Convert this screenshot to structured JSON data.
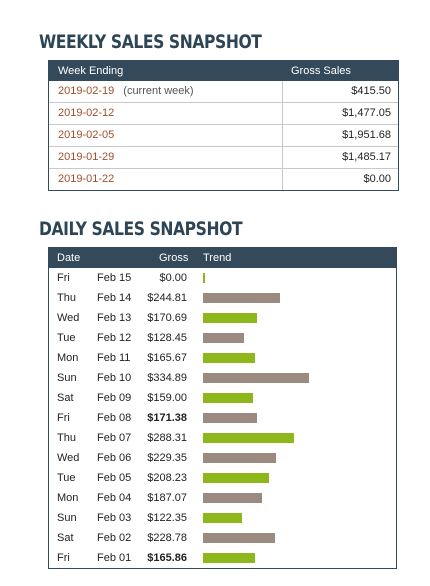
{
  "weekly": {
    "title": "WEEKLY SALES SNAPSHOT",
    "headers": {
      "week_ending": "Week Ending",
      "gross_sales": "Gross Sales"
    },
    "rows": [
      {
        "date": "2019-02-19",
        "note": "(current week)",
        "amount": "$415.50"
      },
      {
        "date": "2019-02-12",
        "note": "",
        "amount": "$1,477.05"
      },
      {
        "date": "2019-02-05",
        "note": "",
        "amount": "$1,951.68"
      },
      {
        "date": "2019-01-29",
        "note": "",
        "amount": "$1,485.17"
      },
      {
        "date": "2019-01-22",
        "note": "",
        "amount": "$0.00"
      }
    ]
  },
  "daily": {
    "title": "DAILY SALES SNAPSHOT",
    "headers": {
      "date": "Date",
      "gross": "Gross",
      "trend": "Trend"
    },
    "colors": {
      "green": "#8db71b",
      "taupe": "#9b8a7f"
    },
    "trend_max": 334.89,
    "rows": [
      {
        "dow": "Fri",
        "md": "Feb 15",
        "amount": "$0.00",
        "value": 0,
        "bold": false,
        "color": "green"
      },
      {
        "dow": "Thu",
        "md": "Feb 14",
        "amount": "$244.81",
        "value": 244.81,
        "bold": false,
        "color": "taupe"
      },
      {
        "dow": "Wed",
        "md": "Feb 13",
        "amount": "$170.69",
        "value": 170.69,
        "bold": false,
        "color": "green"
      },
      {
        "dow": "Tue",
        "md": "Feb 12",
        "amount": "$128.45",
        "value": 128.45,
        "bold": false,
        "color": "taupe"
      },
      {
        "dow": "Mon",
        "md": "Feb 11",
        "amount": "$165.67",
        "value": 165.67,
        "bold": false,
        "color": "green"
      },
      {
        "dow": "Sun",
        "md": "Feb 10",
        "amount": "$334.89",
        "value": 334.89,
        "bold": false,
        "color": "taupe"
      },
      {
        "dow": "Sat",
        "md": "Feb 09",
        "amount": "$159.00",
        "value": 159.0,
        "bold": false,
        "color": "green"
      },
      {
        "dow": "Fri",
        "md": "Feb 08",
        "amount": "$171.38",
        "value": 171.38,
        "bold": true,
        "color": "taupe"
      },
      {
        "dow": "Thu",
        "md": "Feb 07",
        "amount": "$288.31",
        "value": 288.31,
        "bold": false,
        "color": "green"
      },
      {
        "dow": "Wed",
        "md": "Feb 06",
        "amount": "$229.35",
        "value": 229.35,
        "bold": false,
        "color": "taupe"
      },
      {
        "dow": "Tue",
        "md": "Feb 05",
        "amount": "$208.23",
        "value": 208.23,
        "bold": false,
        "color": "green"
      },
      {
        "dow": "Mon",
        "md": "Feb 04",
        "amount": "$187.07",
        "value": 187.07,
        "bold": false,
        "color": "taupe"
      },
      {
        "dow": "Sun",
        "md": "Feb 03",
        "amount": "$122.35",
        "value": 122.35,
        "bold": false,
        "color": "green"
      },
      {
        "dow": "Sat",
        "md": "Feb 02",
        "amount": "$228.78",
        "value": 228.78,
        "bold": false,
        "color": "taupe"
      },
      {
        "dow": "Fri",
        "md": "Feb 01",
        "amount": "$165.86",
        "value": 165.86,
        "bold": true,
        "color": "green"
      }
    ]
  }
}
